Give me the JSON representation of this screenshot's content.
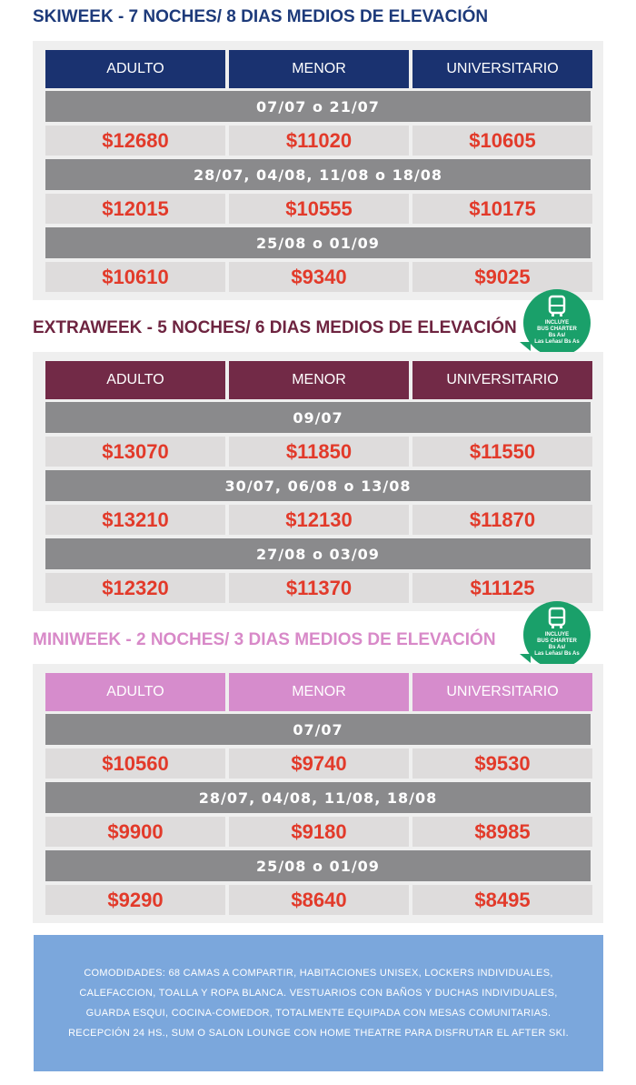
{
  "currency": "$",
  "sections": [
    {
      "title": "SKIWEEK - 7 NOCHES/ 8 DIAS MEDIOS DE ELEVACIÓN",
      "headers": [
        "ADULTO",
        "MENOR",
        "UNIVERSITARIO"
      ],
      "groups": [
        {
          "dates": "07/07 o 21/07",
          "prices": [
            12680,
            11020,
            10605
          ]
        },
        {
          "dates": "28/07, 04/08, 11/08 o 18/08",
          "prices": [
            12015,
            10555,
            10175
          ]
        },
        {
          "dates": "25/08 o 01/09",
          "prices": [
            10610,
            9340,
            9025
          ]
        }
      ]
    },
    {
      "title": "EXTRAWEEK - 5 NOCHES/ 6 DIAS MEDIOS DE ELEVACIÓN",
      "headers": [
        "ADULTO",
        "MENOR",
        "UNIVERSITARIO"
      ],
      "badge": [
        "INCLUYE",
        "BUS CHARTER",
        "Bs As/",
        "Las Leñas/ Bs As"
      ],
      "groups": [
        {
          "dates": "09/07",
          "prices": [
            13070,
            11850,
            11550
          ]
        },
        {
          "dates": "30/07, 06/08 o 13/08",
          "prices": [
            13210,
            12130,
            11870
          ]
        },
        {
          "dates": "27/08 o 03/09",
          "prices": [
            12320,
            11370,
            11125
          ]
        }
      ]
    },
    {
      "title": "MINIWEEK - 2 NOCHES/ 3 DIAS MEDIOS DE ELEVACIÓN",
      "headers": [
        "ADULTO",
        "MENOR",
        "UNIVERSITARIO"
      ],
      "badge": [
        "INCLUYE",
        "BUS CHARTER",
        "Bs As/",
        "Las Leñas/ Bs As"
      ],
      "groups": [
        {
          "dates": "07/07",
          "prices": [
            10560,
            9740,
            9530
          ]
        },
        {
          "dates": "28/07, 04/08, 11/08, 18/08",
          "prices": [
            9900,
            9180,
            8985
          ]
        },
        {
          "dates": "25/08 o 01/09",
          "prices": [
            9290,
            8640,
            8495
          ]
        }
      ]
    }
  ],
  "note": "COMODIDADES: 68 CAMAS A COMPARTIR, HABITACIONES UNISEX, LOCKERS INDIVIDUALES, CALEFACCION, TOALLA Y ROPA BLANCA. VESTUARIOS CON BAÑOS Y DUCHAS INDIVIDUALES, GUARDA ESQUI, COCINA-COMEDOR, TOTALMENTE EQUIPADA CON MESAS COMUNITARIAS. RECEPCIÓN 24 HS., SUM O SALON LOUNGE CON HOME THEATRE PARA DISFRUTAR EL AFTER SKI."
}
